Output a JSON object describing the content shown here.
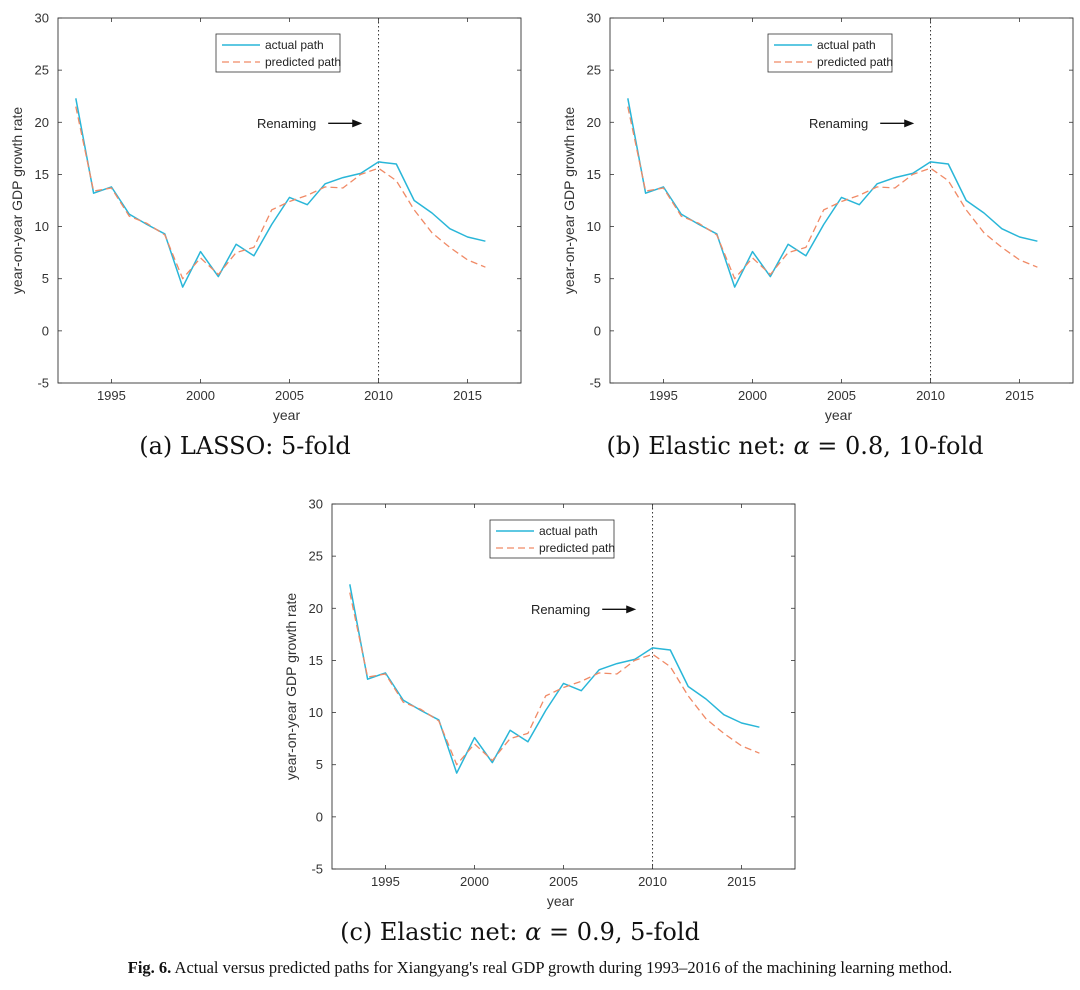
{
  "chart_data": [
    {
      "type": "line",
      "caption": "(a) LASSO: 5-fold",
      "xlabel": "year",
      "ylabel": "year-on-year GDP growth rate",
      "xlim": [
        1992,
        2018
      ],
      "ylim": [
        -5,
        30
      ],
      "xticks": [
        1995,
        2000,
        2005,
        2010,
        2015
      ],
      "yticks": [
        -5,
        0,
        5,
        10,
        15,
        20,
        25,
        30
      ],
      "x": [
        1993,
        1994,
        1995,
        1996,
        1997,
        1998,
        1999,
        2000,
        2001,
        2002,
        2003,
        2004,
        2005,
        2006,
        2007,
        2008,
        2009,
        2010,
        2011,
        2012,
        2013,
        2014,
        2015,
        2016
      ],
      "series": [
        {
          "name": "actual path",
          "color": "#29b6d8",
          "dash": "solid",
          "values": [
            22.3,
            13.2,
            13.8,
            11.2,
            10.2,
            9.3,
            4.2,
            7.6,
            5.2,
            8.3,
            7.2,
            10.2,
            12.8,
            12.1,
            14.1,
            14.7,
            15.1,
            16.2,
            16.0,
            12.5,
            11.3,
            9.8,
            9.0,
            8.6
          ]
        },
        {
          "name": "predicted path",
          "color": "#f08a66",
          "dash": "dashed",
          "values": [
            21.5,
            13.4,
            13.7,
            11.0,
            10.3,
            9.2,
            5.0,
            7.0,
            5.4,
            7.5,
            8.0,
            11.6,
            12.4,
            13.0,
            13.8,
            13.7,
            15.0,
            15.6,
            14.4,
            11.6,
            9.4,
            8.0,
            6.8,
            6.1
          ]
        }
      ],
      "vline": {
        "x": 2010,
        "style": "dotted"
      },
      "annotation": {
        "text": "Renaming",
        "x": 2006.5,
        "y": 19.9
      },
      "legend": "top-center"
    },
    {
      "type": "line",
      "caption": "(b) Elastic net: ",
      "caption_alpha": "α",
      "caption_rest": " = 0.8, 10-fold",
      "xlabel": "year",
      "ylabel": "year-on-year GDP growth rate",
      "xlim": [
        1992,
        2018
      ],
      "ylim": [
        -5,
        30
      ],
      "xticks": [
        1995,
        2000,
        2005,
        2010,
        2015
      ],
      "yticks": [
        -5,
        0,
        5,
        10,
        15,
        20,
        25,
        30
      ],
      "x": [
        1993,
        1994,
        1995,
        1996,
        1997,
        1998,
        1999,
        2000,
        2001,
        2002,
        2003,
        2004,
        2005,
        2006,
        2007,
        2008,
        2009,
        2010,
        2011,
        2012,
        2013,
        2014,
        2015,
        2016
      ],
      "series": [
        {
          "name": "actual path",
          "color": "#29b6d8",
          "dash": "solid",
          "values": [
            22.3,
            13.2,
            13.8,
            11.2,
            10.2,
            9.3,
            4.2,
            7.6,
            5.2,
            8.3,
            7.2,
            10.2,
            12.8,
            12.1,
            14.1,
            14.7,
            15.1,
            16.2,
            16.0,
            12.5,
            11.3,
            9.8,
            9.0,
            8.6
          ]
        },
        {
          "name": "predicted path",
          "color": "#f08a66",
          "dash": "dashed",
          "values": [
            21.5,
            13.4,
            13.7,
            11.0,
            10.3,
            9.2,
            5.0,
            7.0,
            5.4,
            7.5,
            8.0,
            11.6,
            12.4,
            13.0,
            13.8,
            13.7,
            15.0,
            15.6,
            14.4,
            11.6,
            9.4,
            8.0,
            6.8,
            6.1
          ]
        }
      ],
      "vline": {
        "x": 2010,
        "style": "dotted"
      },
      "annotation": {
        "text": "Renaming",
        "x": 2006.5,
        "y": 19.9
      },
      "legend": "top-center"
    },
    {
      "type": "line",
      "caption": "(c) Elastic net: ",
      "caption_alpha": "α",
      "caption_rest": " = 0.9, 5-fold",
      "xlabel": "year",
      "ylabel": "year-on-year GDP growth rate",
      "xlim": [
        1992,
        2018
      ],
      "ylim": [
        -5,
        30
      ],
      "xticks": [
        1995,
        2000,
        2005,
        2010,
        2015
      ],
      "yticks": [
        -5,
        0,
        5,
        10,
        15,
        20,
        25,
        30
      ],
      "x": [
        1993,
        1994,
        1995,
        1996,
        1997,
        1998,
        1999,
        2000,
        2001,
        2002,
        2003,
        2004,
        2005,
        2006,
        2007,
        2008,
        2009,
        2010,
        2011,
        2012,
        2013,
        2014,
        2015,
        2016
      ],
      "series": [
        {
          "name": "actual path",
          "color": "#29b6d8",
          "dash": "solid",
          "values": [
            22.3,
            13.2,
            13.8,
            11.2,
            10.2,
            9.3,
            4.2,
            7.6,
            5.2,
            8.3,
            7.2,
            10.2,
            12.8,
            12.1,
            14.1,
            14.7,
            15.1,
            16.2,
            16.0,
            12.5,
            11.3,
            9.8,
            9.0,
            8.6
          ]
        },
        {
          "name": "predicted path",
          "color": "#f08a66",
          "dash": "dashed",
          "values": [
            21.5,
            13.4,
            13.7,
            11.0,
            10.3,
            9.2,
            5.0,
            7.0,
            5.4,
            7.5,
            8.0,
            11.6,
            12.4,
            13.0,
            13.8,
            13.7,
            15.0,
            15.6,
            14.4,
            11.6,
            9.4,
            8.0,
            6.8,
            6.1
          ]
        }
      ],
      "vline": {
        "x": 2010,
        "style": "dotted"
      },
      "annotation": {
        "text": "Renaming",
        "x": 2006.5,
        "y": 19.9
      },
      "legend": "top-center"
    }
  ],
  "figure_caption": {
    "label": "Fig. 6.",
    "text": " Actual versus predicted paths for Xiangyang's real GDP growth during 1993–2016 of the machining learning method."
  }
}
